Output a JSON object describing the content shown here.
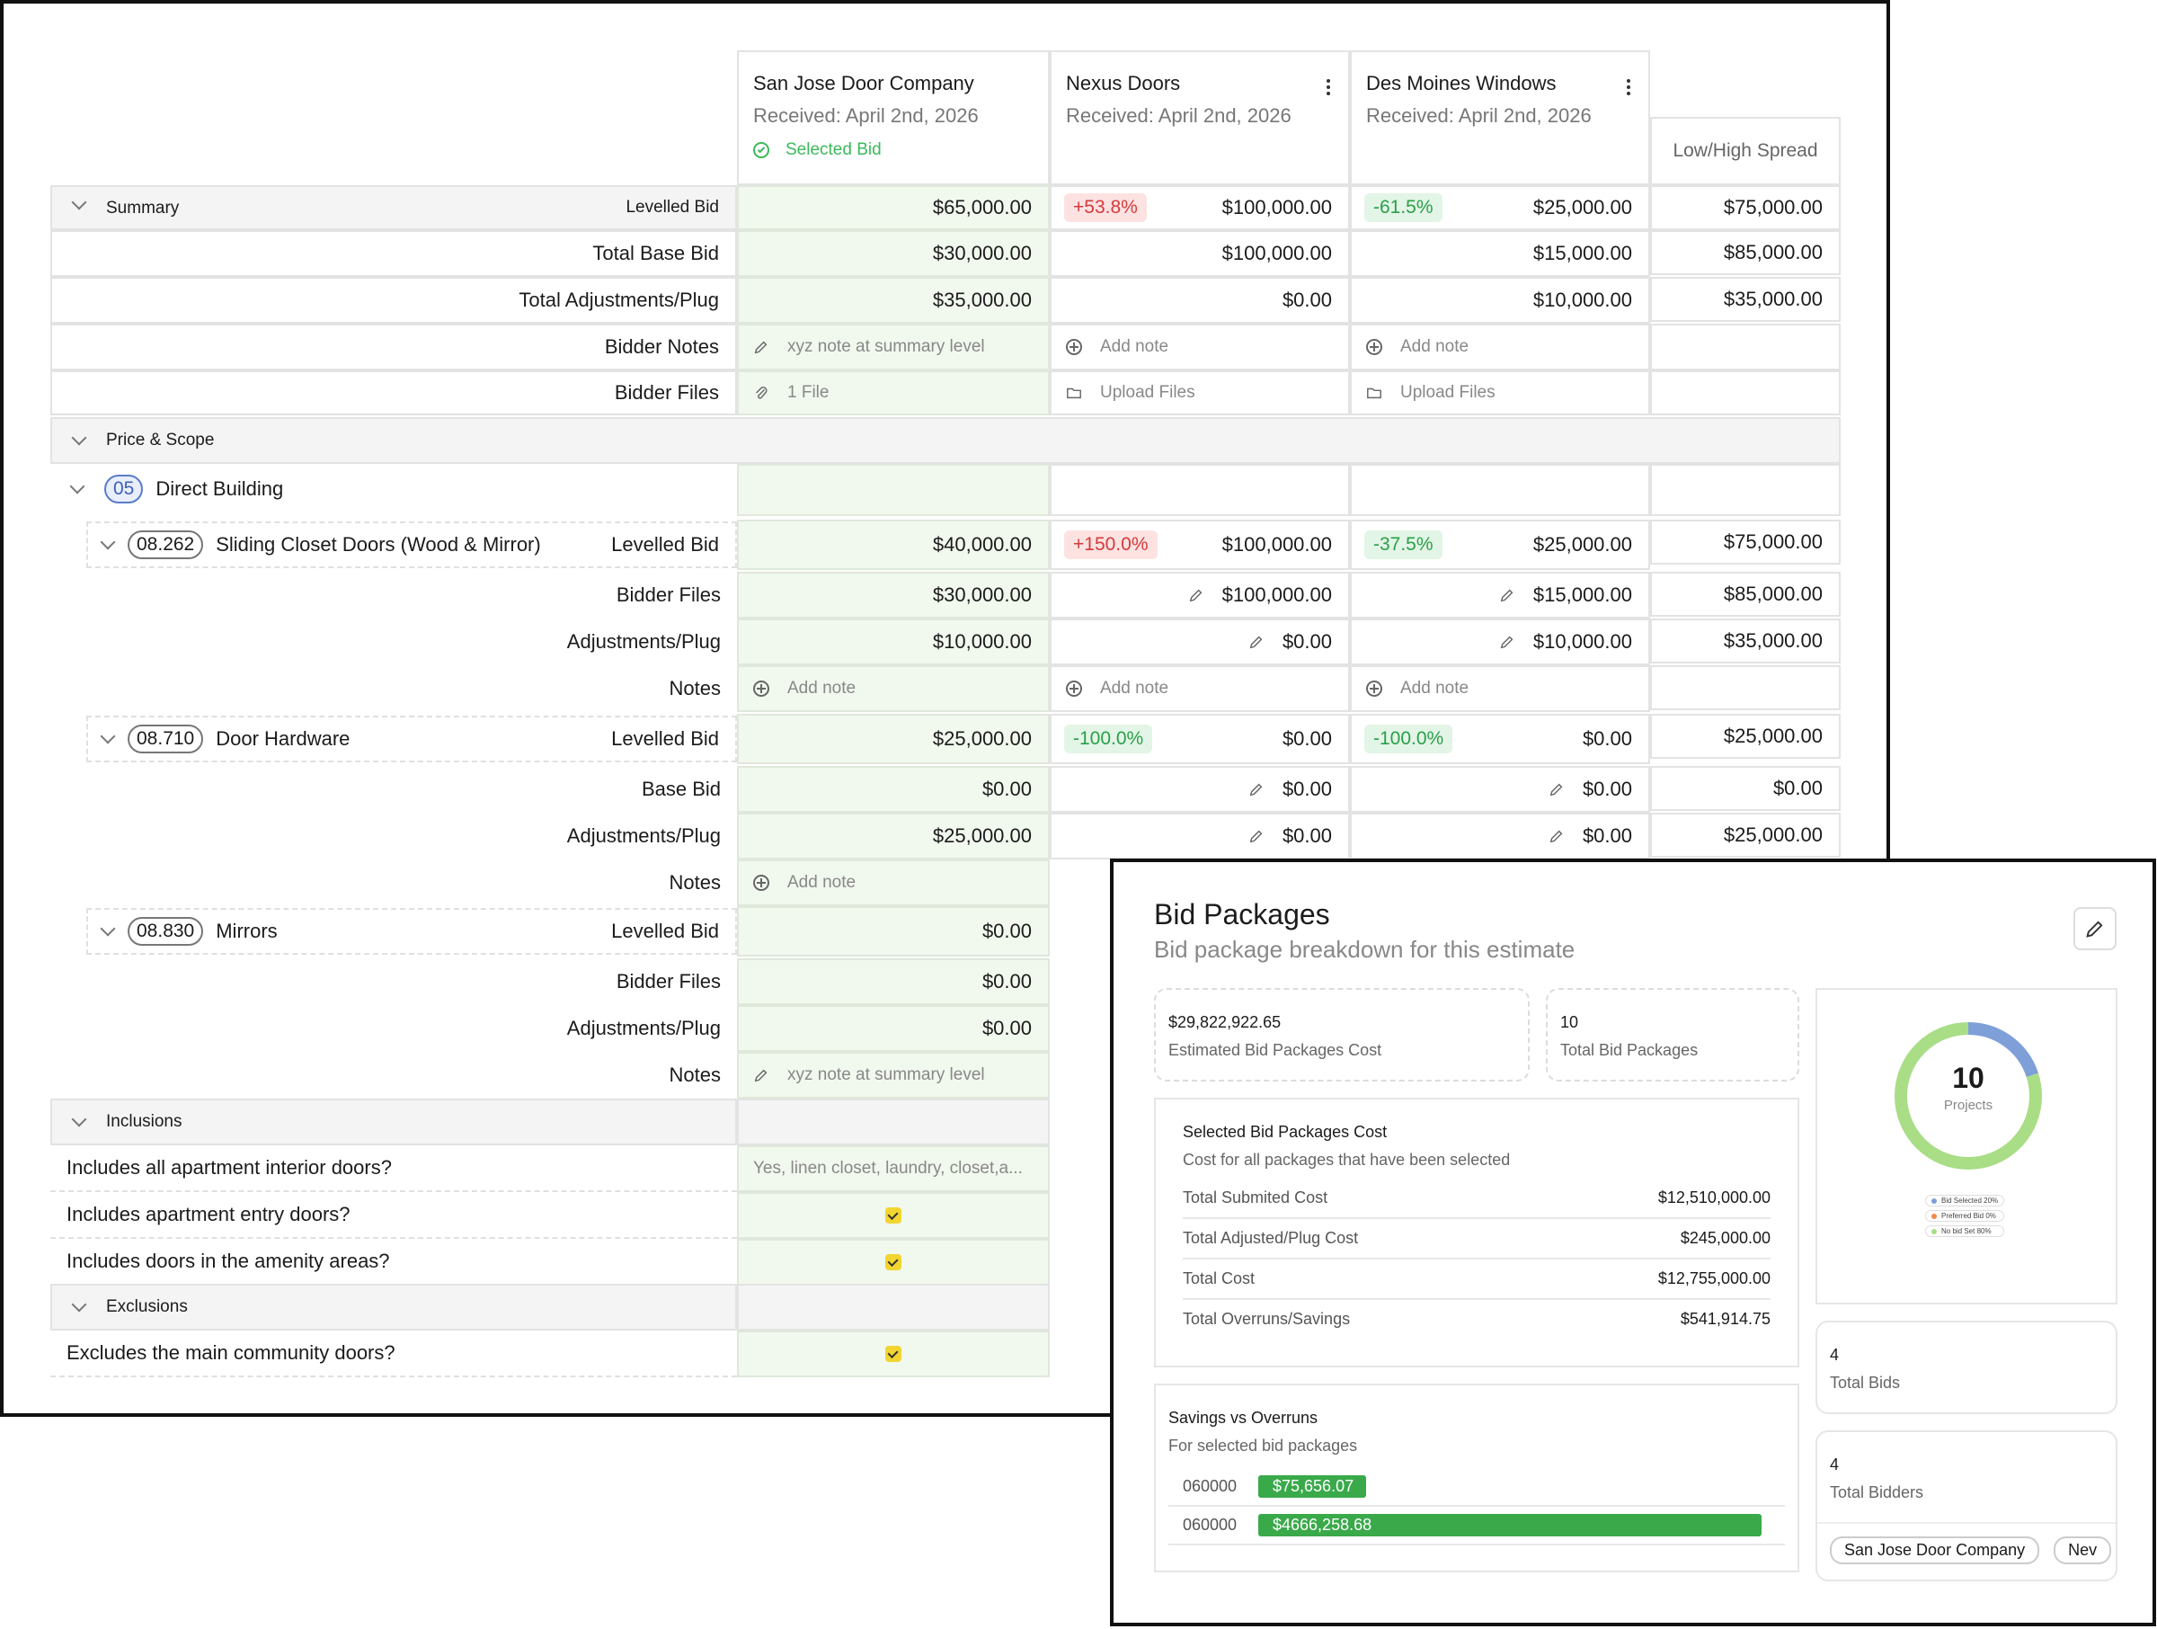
{
  "bidders": [
    {
      "name": "San Jose Door Company",
      "received": "Received: April 2nd, 2026",
      "status": "Selected Bid"
    },
    {
      "name": "Nexus Doors",
      "received": "Received: April 2nd, 2026"
    },
    {
      "name": "Des Moines Windows",
      "received": "Received: April 2nd, 2026"
    }
  ],
  "spread_header": "Low/High Spread",
  "summary": {
    "label": "Summary",
    "levelled_label": "Levelled Bid",
    "levelled": [
      "$65,000.00",
      "$100,000.00",
      "$25,000.00",
      "$75,000.00"
    ],
    "pct": [
      "+53.8%",
      "-61.5%"
    ],
    "base_label": "Total Base Bid",
    "base": [
      "$30,000.00",
      "$100,000.00",
      "$15,000.00",
      "$85,000.00"
    ],
    "adj_label": "Total Adjustments/Plug",
    "adj": [
      "$35,000.00",
      "$0.00",
      "$10,000.00",
      "$35,000.00"
    ],
    "notes_label": "Bidder Notes",
    "note_text": "xyz note at summary level",
    "add_note": "Add note",
    "files_label": "Bidder Files",
    "files_text": "1 File",
    "upload": "Upload Files"
  },
  "price_scope_label": "Price & Scope",
  "direct_building": {
    "code": "05",
    "label": "Direct Building"
  },
  "items": [
    {
      "code": "08.262",
      "name": "Sliding Closet Doors (Wood & Mirror)",
      "levelled_label": "Levelled Bid",
      "levelled": [
        "$40,000.00",
        "$100,000.00",
        "$25,000.00",
        "$75,000.00"
      ],
      "pct": [
        "+150.0%",
        "-37.5%"
      ],
      "r2_label": "Bidder Files",
      "r2": [
        "$30,000.00",
        "$100,000.00",
        "$15,000.00",
        "$85,000.00"
      ],
      "r3_label": "Adjustments/Plug",
      "r3": [
        "$10,000.00",
        "$0.00",
        "$10,000.00",
        "$35,000.00"
      ],
      "notes_label": "Notes"
    },
    {
      "code": "08.710",
      "name": "Door Hardware",
      "levelled_label": "Levelled Bid",
      "levelled": [
        "$25,000.00",
        "$0.00",
        "$0.00",
        "$25,000.00"
      ],
      "pct": [
        "-100.0%",
        "-100.0%"
      ],
      "r2_label": "Base Bid",
      "r2": [
        "$0.00",
        "$0.00",
        "$0.00",
        "$0.00"
      ],
      "r3_label": "Adjustments/Plug",
      "r3": [
        "$25,000.00",
        "$0.00",
        "$0.00",
        "$25,000.00"
      ],
      "notes_label": "Notes"
    },
    {
      "code": "08.830",
      "name": "Mirrors",
      "levelled_label": "Levelled Bid",
      "levelled": [
        "$0.00"
      ],
      "r2_label": "Bidder Files",
      "r2": [
        "$0.00"
      ],
      "r3_label": "Adjustments/Plug",
      "r3": [
        "$0.00"
      ],
      "notes_label": "Notes"
    }
  ],
  "inclusions": {
    "label": "Inclusions",
    "q1": "Includes all apartment interior doors?",
    "a1": "Yes, linen closet, laundry, closet,a...",
    "q2": "Includes apartment entry doors?",
    "q3": "Includes doors in the amenity areas?"
  },
  "exclusions": {
    "label": "Exclusions",
    "q1": "Excludes the main community doors?"
  },
  "bid_packages": {
    "title": "Bid Packages",
    "subtitle": "Bid package breakdown for this estimate",
    "est_value": "$29,822,922.65",
    "est_label": "Estimated Bid Packages Cost",
    "total_value": "10",
    "total_label": "Total Bid Packages",
    "selected_title": "Selected Bid Packages Cost",
    "selected_sub": "Cost for all packages that have been selected",
    "rows": [
      {
        "label": "Total Submited Cost",
        "value": "$12,510,000.00"
      },
      {
        "label": "Total Adjusted/Plug Cost",
        "value": "$245,000.00"
      },
      {
        "label": "Total Cost",
        "value": "$12,755,000.00"
      },
      {
        "label": "Total Overruns/Savings",
        "value": "$541,914.75"
      }
    ],
    "savings_title": "Savings vs Overruns",
    "savings_sub": "For selected bid packages",
    "bars": [
      {
        "code": "060000",
        "value": "$75,656.07",
        "fraction": 0.16
      },
      {
        "code": "060000",
        "value": "$4666,258.68",
        "fraction": 1.0
      }
    ],
    "donut": {
      "count": "10",
      "label": "Projects",
      "segments": [
        {
          "name": "Bid Selected 20%",
          "fraction": 0.2,
          "color": "#7f9fd8"
        },
        {
          "name": "Preferred Bid 0%",
          "fraction": 0,
          "color": "#f08a4b"
        },
        {
          "name": "No bid Set 80%",
          "fraction": 0.8,
          "color": "#a9dd86"
        }
      ]
    },
    "bids_value": "4",
    "bids_label": "Total Bids",
    "bidders_value": "4",
    "bidders_label": "Total Bidders",
    "chips": [
      "San Jose Door Company",
      "Nev"
    ]
  },
  "colors": {
    "selected_green": "#3cb95b",
    "bar_green": "#3aa94a"
  }
}
